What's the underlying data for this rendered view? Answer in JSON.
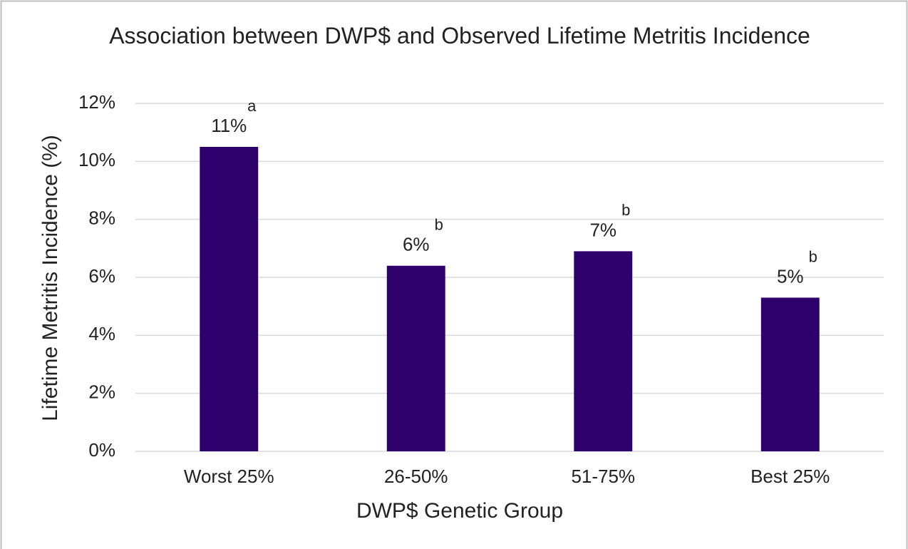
{
  "chart_data": {
    "type": "bar",
    "title": "Association between DWP$ and Observed Lifetime Metritis Incidence",
    "x_label": "DWP$ Genetic Group",
    "y_label": "Lifetime Metritis Incidence (%)",
    "categories": [
      "Worst 25%",
      "26-50%",
      "51-75%",
      "Best 25%"
    ],
    "values": [
      10.5,
      6.4,
      6.9,
      5.3
    ],
    "value_labels": [
      "11%",
      "6%",
      "7%",
      "5%"
    ],
    "significance_letters": [
      "a",
      "b",
      "b",
      "b"
    ],
    "color": "#2e006b",
    "ylim": [
      0,
      12
    ],
    "yticks": [
      {
        "value": 0,
        "label": "0%"
      },
      {
        "value": 2,
        "label": "2%"
      },
      {
        "value": 4,
        "label": "4%"
      },
      {
        "value": 6,
        "label": "6%"
      },
      {
        "value": 8,
        "label": "8%"
      },
      {
        "value": 10,
        "label": "10%"
      },
      {
        "value": 12,
        "label": "12%"
      }
    ],
    "grid": true
  }
}
